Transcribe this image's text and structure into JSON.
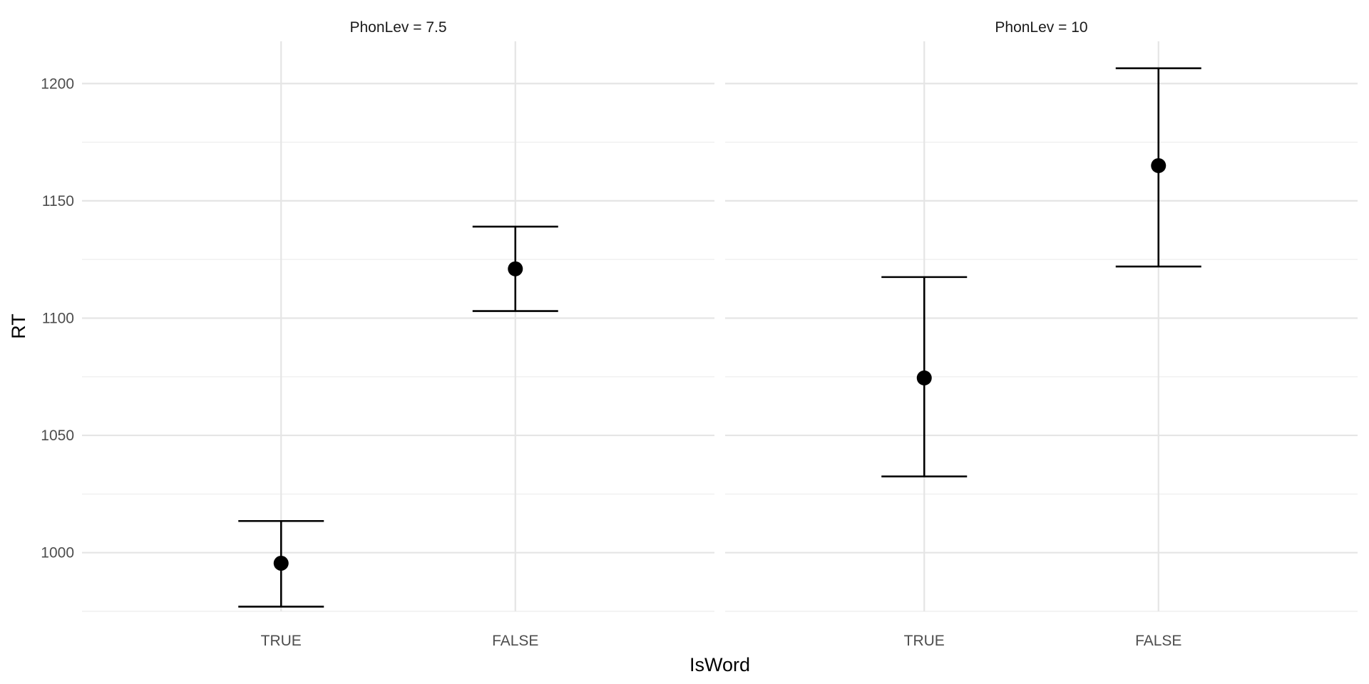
{
  "chart_data": {
    "type": "scatter",
    "xlabel": "IsWord",
    "ylabel": "RT",
    "categories": [
      "TRUE",
      "FALSE"
    ],
    "ylim": [
      975,
      1218
    ],
    "y_ticks": [
      1000,
      1050,
      1100,
      1150,
      1200
    ],
    "grid": true,
    "legend": "none",
    "facets": [
      {
        "label": "PhonLev = 7.5",
        "points": [
          {
            "x": "TRUE",
            "y": 995.5,
            "ymin": 977.0,
            "ymax": 1013.5
          },
          {
            "x": "FALSE",
            "y": 1121.0,
            "ymin": 1103.0,
            "ymax": 1139.0
          }
        ]
      },
      {
        "label": "PhonLev = 10",
        "points": [
          {
            "x": "TRUE",
            "y": 1074.5,
            "ymin": 1032.5,
            "ymax": 1117.5
          },
          {
            "x": "FALSE",
            "y": 1165.0,
            "ymin": 1122.0,
            "ymax": 1206.5
          }
        ]
      }
    ],
    "colors": {
      "point": "#000000",
      "grid": "#e5e5e5",
      "text": "#4d4d4d"
    }
  }
}
